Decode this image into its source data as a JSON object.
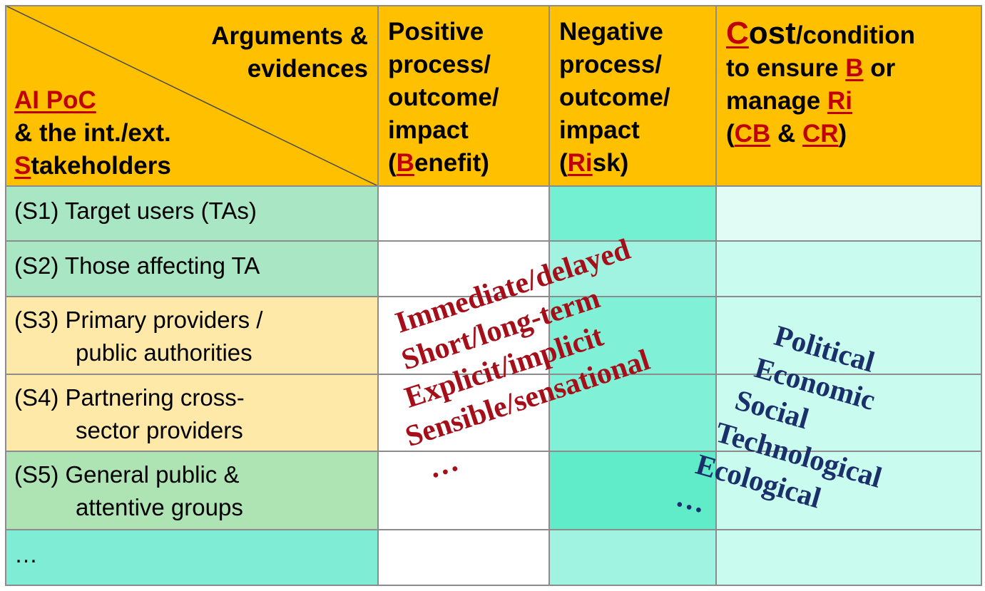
{
  "header": {
    "corner_top": "Arguments &",
    "corner_top2": "evidences",
    "corner_bottom": {
      "line1": "AI PoC",
      "line2": "& the int./ext.",
      "line3_prefix": "S",
      "line3_rest": "takeholders"
    },
    "benefit": {
      "l1": "Positive",
      "l2": "process/",
      "l3": "outcome/",
      "l4": "impact",
      "l5_open": "(",
      "l5_key": "B",
      "l5_rest": "enefit)"
    },
    "risk": {
      "l1": "Negative",
      "l2": "process/",
      "l3": "outcome/",
      "l4": "impact",
      "l5_open": "(",
      "l5_key": "Ri",
      "l5_rest": "sk)"
    },
    "cost": {
      "l1_key": "C",
      "l1_ost": "ost",
      "l1_rest": "/condition",
      "l2_pre": "to ensure ",
      "l2_key": "B",
      "l2_post": " or",
      "l3_pre": "manage ",
      "l3_key": "Ri",
      "l4_open": "(",
      "l4_key1": "CB",
      "l4_mid": " & ",
      "l4_key2": "CR",
      "l4_close": ")"
    }
  },
  "rows": [
    {
      "l1": "(S1) Target users (TAs)",
      "l2": ""
    },
    {
      "l1": "(S2) Those affecting TA",
      "l2": ""
    },
    {
      "l1": "(S3) Primary providers /",
      "l2": "public authorities"
    },
    {
      "l1": "(S4) Partnering cross-",
      "l2": "sector providers"
    },
    {
      "l1": "(S5) General public &",
      "l2": "attentive groups"
    },
    {
      "l1": "…",
      "l2": ""
    }
  ],
  "overlay_left": [
    "Immediate/delayed",
    "Short/long-term",
    "Explicit/implicit",
    "Sensible/sensational",
    "…"
  ],
  "overlay_right": [
    "Political",
    "Economic",
    "Social",
    "Technological",
    "Ecological",
    "…"
  ],
  "colors": {
    "header": "#ffc000",
    "green_row": "#a8e6c4",
    "yellow_row": "#ffe9a8",
    "s5_row": "#aee3b4",
    "teal_row": "#7fedd6",
    "risk_col": "#73efd2",
    "cost_col": "#c9fbee",
    "left_words": "#a50f1a",
    "right_words": "#1b2f6b"
  }
}
